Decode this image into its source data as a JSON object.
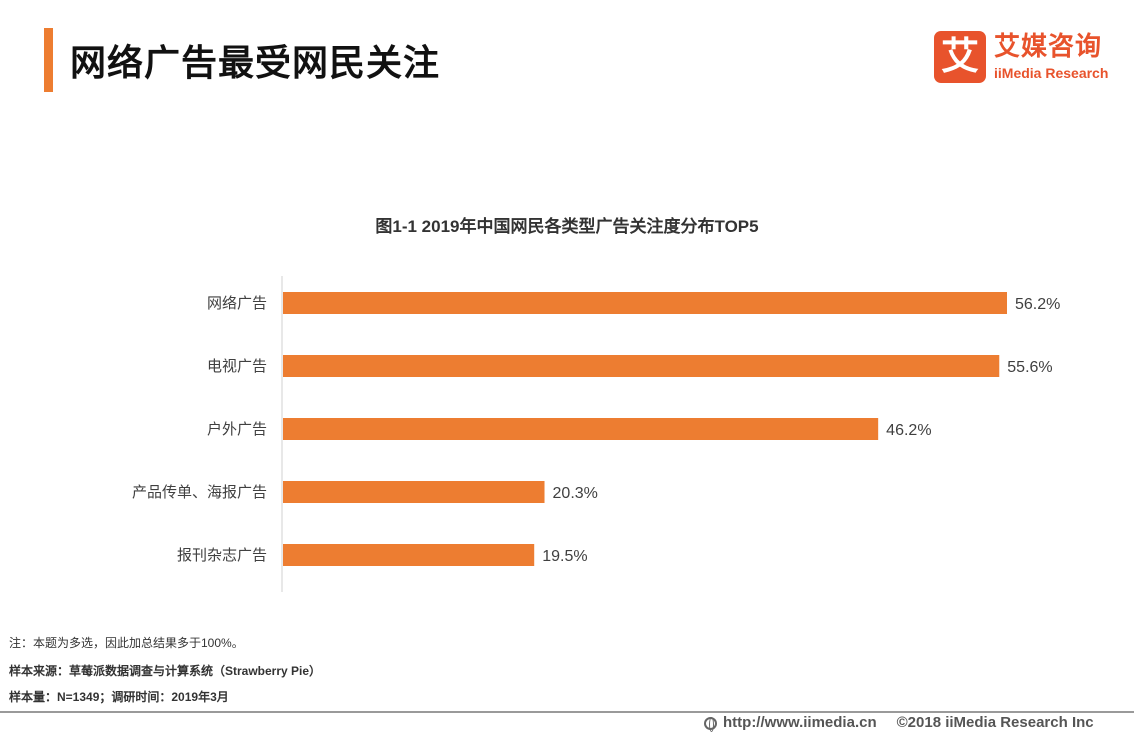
{
  "header": {
    "title": "网络广告最受网民关注",
    "logo": {
      "mark": "艾",
      "name_cn": "艾媒咨询",
      "name_en": "iiMedia Research"
    }
  },
  "chart_data": {
    "type": "bar",
    "orientation": "horizontal",
    "title": "图1-1 2019年中国网民各类型广告关注度分布TOP5",
    "categories": [
      "网络广告",
      "电视广告",
      "户外广告",
      "产品传单、海报广告",
      "报刊杂志广告"
    ],
    "values": [
      56.2,
      55.6,
      46.2,
      20.3,
      19.5
    ],
    "data_labels": [
      "56.2%",
      "55.6%",
      "46.2%",
      "20.3%",
      "19.5%"
    ],
    "xlim": [
      0,
      56.2
    ],
    "bar_color": "#ED7D31",
    "grid": false,
    "legend": "none"
  },
  "notes": {
    "note": "注：本题为多选，因此加总结果多于100%。",
    "source": "样本来源：草莓派数据调查与计算系统（Strawberry Pie）",
    "sample": "样本量：N=1349；调研时间：2019年3月"
  },
  "footer": {
    "url": "http://www.iimedia.cn",
    "copyright": "©2018  iiMedia Research  Inc"
  }
}
